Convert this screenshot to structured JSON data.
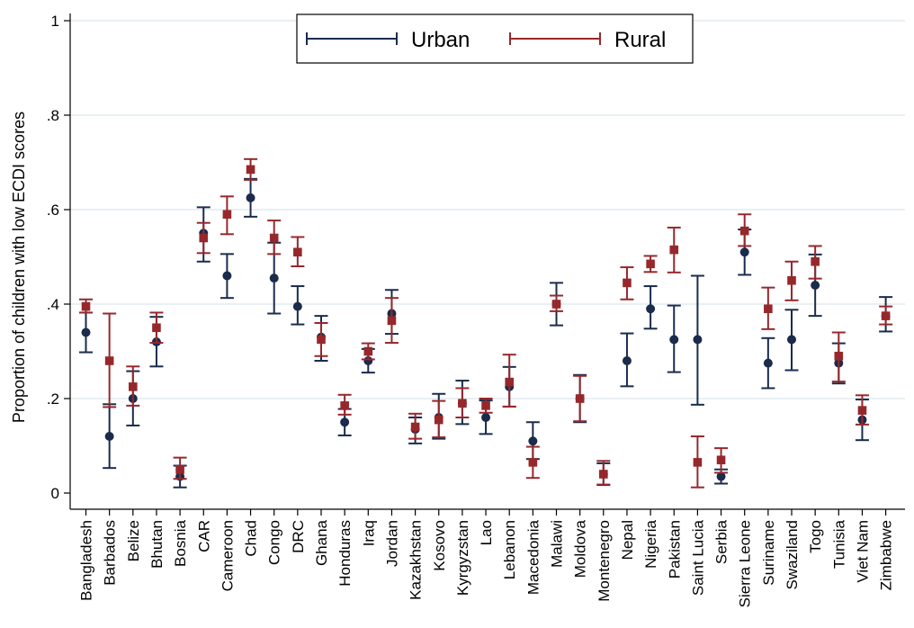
{
  "chart_data": {
    "type": "scatter",
    "ylabel": "Proportion of children with low ECDI scores",
    "xlabel": "",
    "ylim": [
      0,
      1
    ],
    "yticks": [
      0,
      0.2,
      0.4,
      0.6,
      0.8,
      1
    ],
    "ytick_labels": [
      "0",
      ".2",
      ".4",
      ".6",
      ".8",
      "1"
    ],
    "grid": true,
    "legend_position": "top-center",
    "categories": [
      "Bangladesh",
      "Barbados",
      "Belize",
      "Bhutan",
      "Bosnia",
      "CAR",
      "Cameroon",
      "Chad",
      "Congo",
      "DRC",
      "Ghana",
      "Honduras",
      "Iraq",
      "Jordan",
      "Kazakhstan",
      "Kosovo",
      "Kyrgyzstan",
      "Lao",
      "Lebanon",
      "Macedonia",
      "Malawi",
      "Moldova",
      "Montenegro",
      "Nepal",
      "Nigeria",
      "Pakistan",
      "Saint Lucia",
      "Serbia",
      "Sierra Leone",
      "Suriname",
      "Swaziland",
      "Togo",
      "Tunisia",
      "Viet Nam",
      "Zimbabwe"
    ],
    "series": [
      {
        "name": "Urban",
        "color": "#1a2b4c",
        "marker": "circle",
        "values": [
          0.34,
          0.12,
          0.2,
          0.32,
          0.035,
          0.55,
          0.46,
          0.625,
          0.455,
          0.395,
          0.33,
          0.15,
          0.28,
          0.38,
          0.135,
          0.16,
          0.19,
          0.16,
          0.225,
          0.11,
          0.4,
          0.2,
          0.04,
          0.28,
          0.39,
          0.325,
          0.325,
          0.035,
          0.51,
          0.275,
          0.325,
          0.44,
          0.275,
          0.155,
          0.375
        ],
        "low": [
          0.298,
          0.053,
          0.143,
          0.268,
          0.012,
          0.49,
          0.413,
          0.585,
          0.38,
          0.357,
          0.28,
          0.122,
          0.255,
          0.337,
          0.105,
          0.115,
          0.146,
          0.125,
          0.183,
          0.072,
          0.355,
          0.15,
          0.017,
          0.226,
          0.348,
          0.256,
          0.187,
          0.02,
          0.462,
          0.222,
          0.26,
          0.375,
          0.232,
          0.112,
          0.342
        ],
        "high": [
          0.382,
          0.188,
          0.258,
          0.373,
          0.058,
          0.605,
          0.506,
          0.665,
          0.53,
          0.438,
          0.375,
          0.178,
          0.305,
          0.43,
          0.16,
          0.21,
          0.238,
          0.196,
          0.267,
          0.15,
          0.445,
          0.25,
          0.063,
          0.338,
          0.438,
          0.397,
          0.46,
          0.05,
          0.558,
          0.328,
          0.388,
          0.505,
          0.317,
          0.198,
          0.415
        ]
      },
      {
        "name": "Rural",
        "color": "#96282c",
        "marker": "square",
        "values": [
          0.395,
          0.28,
          0.225,
          0.35,
          0.05,
          0.54,
          0.59,
          0.685,
          0.54,
          0.51,
          0.325,
          0.185,
          0.3,
          0.365,
          0.14,
          0.155,
          0.19,
          0.185,
          0.235,
          0.065,
          0.4,
          0.2,
          0.04,
          0.445,
          0.485,
          0.515,
          0.065,
          0.07,
          0.555,
          0.39,
          0.45,
          0.49,
          0.29,
          0.175,
          0.375
        ],
        "low": [
          0.382,
          0.182,
          0.185,
          0.318,
          0.03,
          0.508,
          0.548,
          0.663,
          0.506,
          0.48,
          0.29,
          0.166,
          0.283,
          0.318,
          0.115,
          0.118,
          0.16,
          0.17,
          0.183,
          0.032,
          0.385,
          0.152,
          0.018,
          0.41,
          0.468,
          0.467,
          0.012,
          0.043,
          0.523,
          0.347,
          0.408,
          0.454,
          0.236,
          0.145,
          0.357
        ],
        "high": [
          0.41,
          0.38,
          0.268,
          0.382,
          0.075,
          0.572,
          0.628,
          0.707,
          0.577,
          0.542,
          0.36,
          0.208,
          0.317,
          0.413,
          0.168,
          0.195,
          0.222,
          0.2,
          0.293,
          0.098,
          0.418,
          0.248,
          0.068,
          0.478,
          0.502,
          0.562,
          0.12,
          0.095,
          0.59,
          0.435,
          0.49,
          0.523,
          0.34,
          0.207,
          0.395
        ]
      }
    ]
  }
}
